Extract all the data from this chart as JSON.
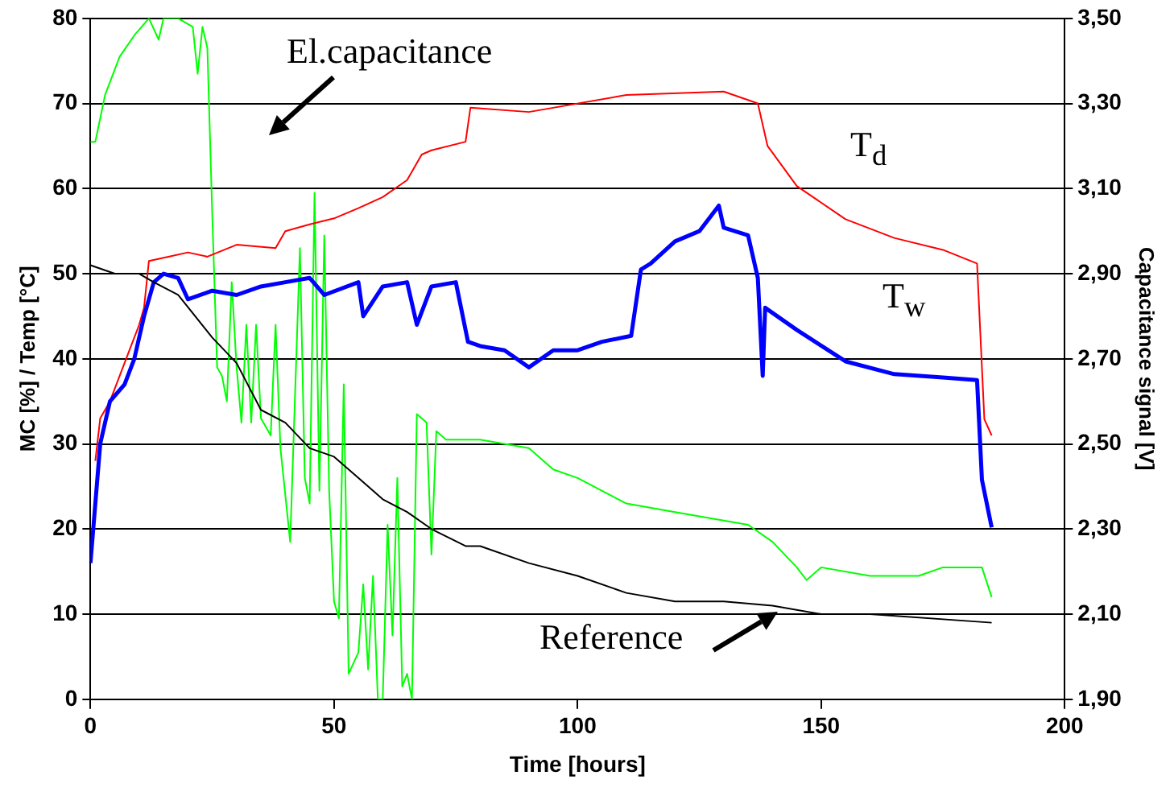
{
  "chart_data": {
    "type": "line",
    "xlabel": "Time [hours]",
    "ylabel": "MC [%] / Temp [°C]",
    "y2label": "Capacitance signal [V]",
    "xlim": [
      0,
      200
    ],
    "xticks": [
      0,
      50,
      100,
      150,
      200
    ],
    "ylim": [
      0,
      80
    ],
    "yticks": [
      0,
      10,
      20,
      30,
      40,
      50,
      60,
      70,
      80
    ],
    "y2lim": [
      1.9,
      3.5
    ],
    "y2ticks": [
      {
        "value": 1.9,
        "label": "1,90"
      },
      {
        "value": 2.1,
        "label": "2,10"
      },
      {
        "value": 2.3,
        "label": "2,30"
      },
      {
        "value": 2.5,
        "label": "2,50"
      },
      {
        "value": 2.7,
        "label": "2,70"
      },
      {
        "value": 2.9,
        "label": "2,90"
      },
      {
        "value": 3.1,
        "label": "3,10"
      },
      {
        "value": 3.3,
        "label": "3,30"
      },
      {
        "value": 3.5,
        "label": "3,50"
      }
    ],
    "grid": "y",
    "legend": false,
    "annotations": [
      "El.capacitance",
      "T$_{d}$",
      "T$_{w}$",
      {
        "text": "Reference",
        "x": 141,
        "y": 10.2
      }
    ],
    "marker": "none",
    "line_style": "solid",
    "series": [
      {
        "color": "#00ff00",
        "axis": "y2",
        "x": [
          0,
          1,
          3,
          6,
          9,
          12,
          14,
          15,
          18,
          21,
          22,
          23,
          24,
          25,
          26,
          27,
          28,
          29,
          30,
          31,
          32,
          33,
          34,
          35,
          37,
          38,
          39,
          41,
          43,
          44,
          45,
          46,
          47,
          48,
          49,
          50,
          51,
          52,
          53,
          55,
          56,
          57,
          58,
          59,
          60,
          61,
          62,
          63,
          64,
          65,
          66,
          67,
          69,
          70,
          71,
          73,
          80,
          90,
          95,
          100,
          110,
          120,
          130,
          135,
          140,
          145,
          147,
          150,
          160,
          170,
          175,
          183,
          185
        ],
        "values": [
          3.21,
          3.21,
          3.32,
          3.41,
          3.46,
          3.5,
          3.45,
          3.5,
          3.5,
          3.48,
          3.37,
          3.48,
          3.43,
          3.04,
          2.68,
          2.66,
          2.6,
          2.88,
          2.68,
          2.55,
          2.78,
          2.55,
          2.78,
          2.56,
          2.52,
          2.78,
          2.49,
          2.27,
          2.96,
          2.42,
          2.36,
          3.09,
          2.39,
          2.99,
          2.39,
          2.13,
          2.09,
          2.64,
          1.96,
          2.01,
          2.17,
          1.97,
          2.19,
          1.9,
          1.9,
          2.31,
          2.05,
          2.42,
          1.93,
          1.96,
          1.9,
          2.57,
          2.55,
          2.24,
          2.53,
          2.51,
          2.51,
          2.49,
          2.44,
          2.42,
          2.36,
          2.34,
          2.32,
          2.31,
          2.27,
          2.21,
          2.18,
          2.21,
          2.19,
          2.19,
          2.21,
          2.21,
          2.14
        ]
      },
      {
        "color": "#ff0000",
        "x": [
          1,
          2,
          4,
          6,
          8,
          10,
          11,
          12,
          16,
          20,
          24,
          30,
          38,
          40,
          45,
          50,
          55,
          60,
          65,
          68,
          70,
          77,
          78,
          90,
          110,
          130,
          137,
          139,
          145,
          155,
          165,
          175,
          182,
          183.5,
          185
        ],
        "values": [
          28,
          33,
          35,
          38,
          41,
          44,
          46,
          51.5,
          52,
          52.5,
          52,
          53.4,
          53,
          55,
          55.8,
          56.5,
          57.7,
          59,
          61,
          64,
          64.5,
          65.5,
          69.5,
          69,
          71,
          71.4,
          70,
          65,
          60.3,
          56.4,
          54.2,
          52.8,
          51.2,
          32.9,
          31
        ]
      },
      {
        "color": "#0000ff",
        "x": [
          0,
          2,
          4,
          7,
          9,
          11,
          13,
          15,
          18,
          20,
          25,
          30,
          35,
          40,
          45,
          48,
          55,
          56,
          60,
          65,
          67,
          70,
          75,
          77.5,
          80,
          85,
          90,
          95,
          100,
          105,
          111,
          113,
          115,
          120,
          125,
          129,
          130,
          135,
          137,
          138,
          138.5,
          145,
          155,
          165,
          175,
          182,
          183,
          185
        ],
        "values": [
          16,
          30,
          35,
          37,
          40,
          45,
          49,
          50,
          49.5,
          47,
          48,
          47.5,
          48.5,
          49,
          49.5,
          47.5,
          49,
          45,
          48.5,
          49,
          44,
          48.5,
          49,
          42,
          41.5,
          41,
          39,
          41,
          41,
          42,
          42.7,
          50.5,
          51.2,
          53.8,
          55,
          58,
          55.4,
          54.5,
          49.5,
          38,
          46,
          43.4,
          39.7,
          38.2,
          37.8,
          37.5,
          25.8,
          20.2
        ]
      },
      {
        "color": "#000000",
        "axis": "y2",
        "x": [
          0,
          5,
          10,
          13,
          18,
          25,
          30,
          35,
          40,
          45,
          50,
          55,
          60,
          65,
          70,
          77,
          80,
          90,
          100,
          110,
          120,
          130,
          140,
          150,
          160,
          185
        ],
        "values": [
          2.92,
          2.9,
          2.9,
          2.88,
          2.85,
          2.75,
          2.69,
          2.58,
          2.55,
          2.49,
          2.47,
          2.42,
          2.37,
          2.34,
          2.3,
          2.26,
          2.26,
          2.22,
          2.19,
          2.15,
          2.13,
          2.13,
          2.12,
          2.1,
          2.1,
          2.08
        ]
      }
    ]
  }
}
